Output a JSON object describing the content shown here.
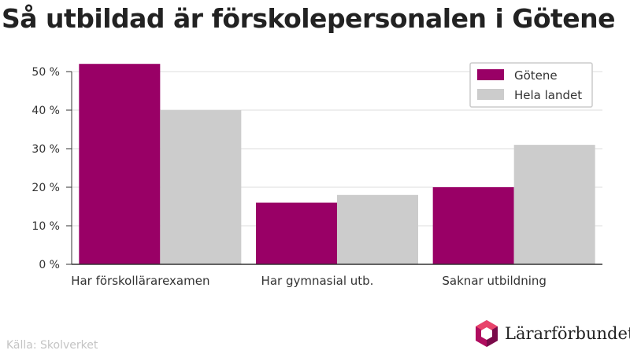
{
  "title": "Så utbildad är förskolepersonalen i Götene",
  "source": "Källa: Skolverket",
  "logo_text": "Lärarförbundet",
  "colors": {
    "gotene": "#990066",
    "hela_landet": "#cccccc",
    "grid": "#dddddd",
    "axis": "#333333",
    "text": "#333333"
  },
  "chart_data": {
    "type": "bar",
    "title": "Så utbildad är förskolepersonalen i Götene",
    "categories": [
      "Har förskollärarexamen",
      "Har gymnasial utb.",
      "Saknar utbildning"
    ],
    "series": [
      {
        "name": "Götene",
        "values": [
          52,
          16,
          20
        ]
      },
      {
        "name": "Hela landet",
        "values": [
          40,
          18,
          31
        ]
      }
    ],
    "ylim": [
      0,
      50
    ],
    "yticks": [
      0,
      10,
      20,
      30,
      40,
      50
    ],
    "ytick_labels": [
      "0 %",
      "10 %",
      "20 %",
      "30 %",
      "40 %",
      "50 %"
    ],
    "xlabel": "",
    "ylabel": "",
    "grid": true,
    "legend_position": "top-right"
  }
}
